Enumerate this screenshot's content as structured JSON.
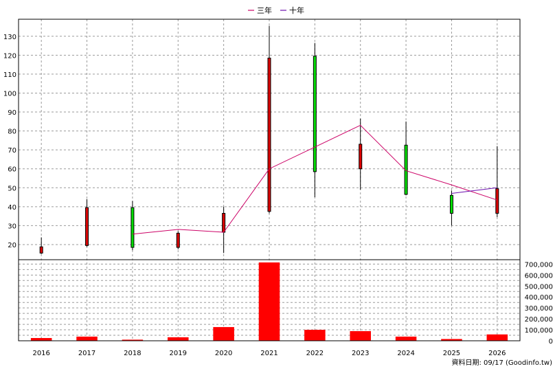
{
  "chart_data": {
    "type": "candlestick",
    "legend": [
      {
        "label": "三年",
        "color": "#cc0066"
      },
      {
        "label": "十年",
        "color": "#6a0dad"
      }
    ],
    "years": [
      "2016",
      "2017",
      "2018",
      "2019",
      "2020",
      "2021",
      "2022",
      "2023",
      "2024",
      "2025",
      "2026"
    ],
    "candles": [
      {
        "year": "2016",
        "open": 18.8,
        "close": 15.5,
        "high": 23.8,
        "low": 15.0
      },
      {
        "year": "2017",
        "open": 39.5,
        "close": 19.5,
        "high": 44.0,
        "low": 18.8
      },
      {
        "year": "2018",
        "open": 18.5,
        "close": 39.5,
        "high": 43.0,
        "low": 17.0
      },
      {
        "year": "2019",
        "open": 26.0,
        "close": 18.5,
        "high": 27.0,
        "low": 17.5
      },
      {
        "year": "2020",
        "open": 36.5,
        "close": 26.5,
        "high": 40.0,
        "low": 15.5
      },
      {
        "year": "2021",
        "open": 118.5,
        "close": 37.5,
        "high": 135.5,
        "low": 36.5
      },
      {
        "year": "2022",
        "open": 58.5,
        "close": 119.5,
        "high": 126.5,
        "low": 45.0
      },
      {
        "year": "2023",
        "open": 73.0,
        "close": 60.0,
        "high": 86.5,
        "low": 49.0
      },
      {
        "year": "2024",
        "open": 46.5,
        "close": 72.5,
        "high": 85.0,
        "low": 46.0
      },
      {
        "year": "2025",
        "open": 36.5,
        "close": 46.0,
        "high": 48.5,
        "low": 30.0
      },
      {
        "year": "2026",
        "open": 49.5,
        "close": 36.5,
        "high": 72.0,
        "low": 34.5
      }
    ],
    "ma_three": [
      {
        "year": "2018",
        "value": 25.5
      },
      {
        "year": "2019",
        "value": 28.0
      },
      {
        "year": "2020",
        "value": 26.5
      },
      {
        "year": "2021",
        "value": 60.0
      },
      {
        "year": "2022",
        "value": 71.5
      },
      {
        "year": "2023",
        "value": 83.0
      },
      {
        "year": "2024",
        "value": 59.0
      },
      {
        "year": "2025",
        "value": 51.5
      },
      {
        "year": "2026",
        "value": 43.5
      }
    ],
    "ma_ten": [
      {
        "year": "2025",
        "value": 47.0
      },
      {
        "year": "2026",
        "value": 50.0
      }
    ],
    "volume": [
      {
        "year": "2016",
        "value": 25000
      },
      {
        "year": "2017",
        "value": 38000
      },
      {
        "year": "2018",
        "value": 10000
      },
      {
        "year": "2019",
        "value": 32000
      },
      {
        "year": "2020",
        "value": 125000
      },
      {
        "year": "2021",
        "value": 715000
      },
      {
        "year": "2022",
        "value": 100000
      },
      {
        "year": "2023",
        "value": 88000
      },
      {
        "year": "2024",
        "value": 38000
      },
      {
        "year": "2025",
        "value": 16000
      },
      {
        "year": "2026",
        "value": 58000
      }
    ],
    "price_axis": {
      "ticks": [
        20,
        30,
        40,
        50,
        60,
        70,
        80,
        90,
        100,
        110,
        120,
        130
      ],
      "range": [
        12,
        139
      ]
    },
    "volume_axis": {
      "ticks": [
        0,
        100000,
        200000,
        300000,
        400000,
        500000,
        600000,
        700000
      ],
      "labels": [
        "0",
        "100,000",
        "200,000",
        "300,000",
        "400,000",
        "500,000",
        "600,000",
        "700,000"
      ],
      "range": [
        0,
        740000
      ]
    },
    "colors": {
      "up": "#00dd00",
      "down": "#dd0000",
      "volume": "#ff0000",
      "grid": "#9a9a9a"
    },
    "footer": "資料日期: 09/17  (Goodinfo.tw)"
  }
}
